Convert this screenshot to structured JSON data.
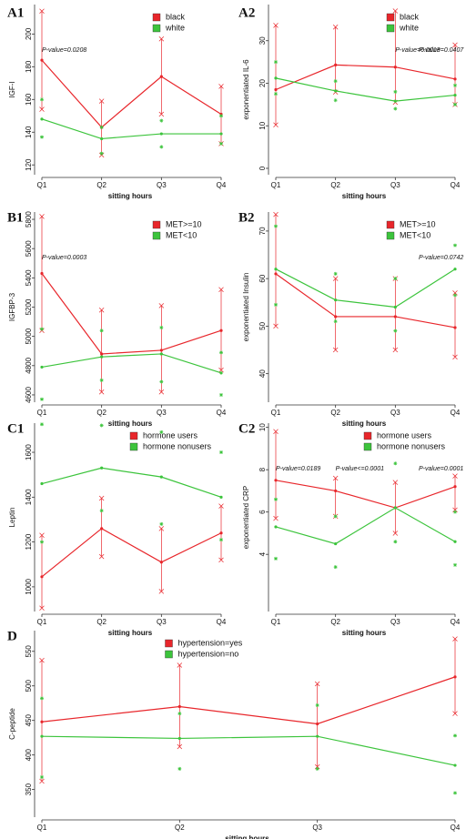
{
  "chart_data": [
    {
      "type": "line",
      "panel": "A1",
      "x_label": "sitting hours",
      "y_label": "IGF-I",
      "legend": "top-right",
      "categories": [
        "Q1",
        "Q2",
        "Q3",
        "Q4"
      ],
      "ylim": [
        114,
        218
      ],
      "yticks": [
        120,
        140,
        160,
        180,
        200
      ],
      "annotations": [
        "P-value=0.0208",
        null,
        null,
        null
      ],
      "series": [
        {
          "name": "black",
          "color": "#e8262b",
          "error_style": "bar",
          "values": [
            184,
            143,
            174,
            151
          ],
          "lower": [
            154,
            126,
            151,
            133
          ],
          "upper": [
            214,
            159,
            197,
            168
          ]
        },
        {
          "name": "white",
          "color": "#3cc43c",
          "error_style": "points",
          "values": [
            148,
            136,
            139,
            139
          ],
          "lower": [
            137,
            127,
            131,
            133
          ],
          "upper": [
            160,
            143,
            147,
            150
          ]
        }
      ]
    },
    {
      "type": "line",
      "panel": "A2",
      "x_label": "sitting hours",
      "y_label": "exponentiated IL-6",
      "legend": "top-right",
      "categories": [
        "Q1",
        "Q2",
        "Q3",
        "Q4"
      ],
      "ylim": [
        -1.5,
        38.5
      ],
      "yticks": [
        0,
        10,
        20,
        30
      ],
      "annotations": [
        null,
        null,
        "P-value=0.0013",
        "P-value=0.0407"
      ],
      "series": [
        {
          "name": "black",
          "color": "#e8262b",
          "error_style": "bar",
          "values": [
            18.5,
            24.3,
            23.8,
            21
          ],
          "lower": [
            10.2,
            17.9,
            15.5,
            15
          ],
          "upper": [
            33.6,
            33.2,
            37,
            29
          ]
        },
        {
          "name": "white",
          "color": "#3cc43c",
          "error_style": "points",
          "values": [
            21.2,
            18.2,
            15.8,
            17.2
          ],
          "lower": [
            17.5,
            16,
            14,
            15
          ],
          "upper": [
            25,
            20.5,
            18,
            19.5
          ]
        }
      ]
    },
    {
      "type": "line",
      "panel": "B1",
      "x_label": "sitting hours",
      "y_label": "IGFBP-3",
      "legend": "top-right",
      "categories": [
        "Q1",
        "Q2",
        "Q3",
        "Q4"
      ],
      "ylim": [
        4550,
        5850
      ],
      "yticks": [
        4600,
        4800,
        5000,
        5200,
        5400,
        5600,
        5800
      ],
      "annotations": [
        "P-value=0.0003",
        null,
        null,
        null
      ],
      "series": [
        {
          "name": "MET>=10",
          "color": "#e8262b",
          "error_style": "bar",
          "values": [
            5430,
            4880,
            4905,
            5040
          ],
          "lower": [
            5040,
            4620,
            4620,
            4770
          ],
          "upper": [
            5820,
            5180,
            5210,
            5320
          ]
        },
        {
          "name": "MET<10",
          "color": "#3cc43c",
          "error_style": "points",
          "values": [
            4790,
            4860,
            4880,
            4750
          ],
          "lower": [
            4570,
            4700,
            4690,
            4600
          ],
          "upper": [
            5050,
            5040,
            5060,
            4890
          ]
        }
      ]
    },
    {
      "type": "line",
      "panel": "B2",
      "x_label": "sitting hours",
      "y_label": "exponentiated Insulin",
      "legend": "top-right",
      "categories": [
        "Q1",
        "Q2",
        "Q3",
        "Q4"
      ],
      "ylim": [
        34,
        74
      ],
      "yticks": [
        40,
        50,
        60,
        70
      ],
      "annotations": [
        null,
        null,
        null,
        "P-value=0.0742"
      ],
      "series": [
        {
          "name": "MET>=10",
          "color": "#e8262b",
          "error_style": "bar",
          "values": [
            61,
            52,
            52,
            49.7
          ],
          "lower": [
            50,
            45,
            45,
            43.5
          ],
          "upper": [
            73.5,
            60,
            60,
            57
          ]
        },
        {
          "name": "MET<10",
          "color": "#3cc43c",
          "error_style": "points",
          "values": [
            62,
            55.5,
            54,
            62
          ],
          "lower": [
            54.5,
            51,
            49,
            56.5
          ],
          "upper": [
            71,
            61,
            60,
            67
          ]
        }
      ]
    },
    {
      "type": "line",
      "panel": "C1",
      "x_label": "sitting hours",
      "y_label": "Leptin",
      "legend": "top-right",
      "categories": [
        "Q1",
        "Q2",
        "Q3",
        "Q4"
      ],
      "ylim": [
        890,
        1730
      ],
      "yticks": [
        1000,
        1200,
        1400,
        1600
      ],
      "annotations": [
        null,
        null,
        null,
        null
      ],
      "series": [
        {
          "name": "hormone users",
          "color": "#e8262b",
          "error_style": "bar",
          "values": [
            1045,
            1260,
            1110,
            1240
          ],
          "lower": [
            905,
            1135,
            980,
            1120
          ],
          "upper": [
            1230,
            1395,
            1260,
            1360
          ]
        },
        {
          "name": "hormone nonusers",
          "color": "#3cc43c",
          "error_style": "points",
          "values": [
            1460,
            1530,
            1490,
            1400
          ],
          "lower": [
            1200,
            1340,
            1280,
            1210
          ],
          "upper": [
            1725,
            1720,
            1690,
            1600
          ]
        }
      ]
    },
    {
      "type": "line",
      "panel": "C2",
      "x_label": "sitting hours",
      "y_label": "exponentiated CRP",
      "legend": "top-right",
      "categories": [
        "Q1",
        "Q2",
        "Q3",
        "Q4"
      ],
      "ylim": [
        1.3,
        10.2
      ],
      "yticks": [
        4,
        6,
        8,
        10
      ],
      "annotations": [
        "P-value=0.0189",
        "P-value<=0.0001",
        null,
        "P-value=0.0001"
      ],
      "series": [
        {
          "name": "hormone users",
          "color": "#e8262b",
          "error_style": "bar",
          "values": [
            7.5,
            7,
            6.2,
            7.2
          ],
          "lower": [
            5.7,
            5.8,
            5,
            6.1
          ],
          "upper": [
            9.8,
            7.6,
            7.4,
            7.7
          ]
        },
        {
          "name": "hormone nonusers",
          "color": "#3cc43c",
          "error_style": "points",
          "values": [
            5.3,
            4.5,
            6.2,
            4.6
          ],
          "lower": [
            3.8,
            3.4,
            4.6,
            3.5
          ],
          "upper": [
            6.6,
            5.8,
            8.3,
            6
          ]
        }
      ]
    },
    {
      "type": "line",
      "panel": "D",
      "x_label": "sitting hours",
      "y_label": "C-peptide",
      "legend": "top-center",
      "categories": [
        "Q1",
        "Q2",
        "Q3",
        "Q4"
      ],
      "ylim": [
        310,
        580
      ],
      "yticks": [
        350,
        400,
        450,
        500,
        550
      ],
      "annotations": [
        null,
        null,
        null,
        null
      ],
      "series": [
        {
          "name": "hypertension=yes",
          "color": "#e8262b",
          "error_style": "bar",
          "values": [
            448,
            470,
            445,
            513
          ],
          "lower": [
            362,
            412,
            383,
            460
          ],
          "upper": [
            537,
            530,
            503,
            568
          ]
        },
        {
          "name": "hypertension=no",
          "color": "#3cc43c",
          "error_style": "points",
          "values": [
            427,
            424,
            427,
            385
          ],
          "lower": [
            368,
            380,
            380,
            345
          ],
          "upper": [
            482,
            460,
            472,
            428
          ]
        }
      ]
    }
  ]
}
